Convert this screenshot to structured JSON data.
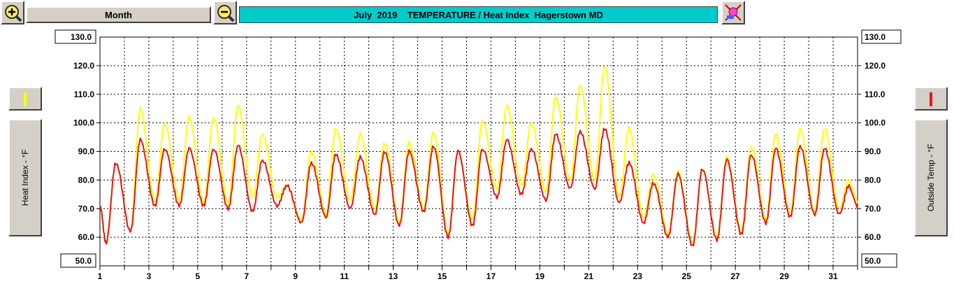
{
  "toolbar": {
    "zoom_in_icon": "magnifier-plus-icon",
    "zoom_out_icon": "magnifier-minus-icon",
    "range_label": "Month",
    "title": "July  2019    TEMPERATURE / Heat Index  Hagerstown MD",
    "settings_icon": "color-settings-icon"
  },
  "left_axis": {
    "label": "Heat Index - °F",
    "max_box": "130.0",
    "min_box": "50.0"
  },
  "right_axis": {
    "label": "Outside Temp - °F",
    "max_box": "130.0",
    "min_box": "50.0"
  },
  "chart_data": {
    "type": "line",
    "title": "July  2019    TEMPERATURE / Heat Index  Hagerstown MD",
    "xlabel": "",
    "ylabel_left": "Heat Index - °F",
    "ylabel_right": "Outside Temp - °F",
    "ylim": [
      50,
      130
    ],
    "xlim": [
      1,
      32
    ],
    "grid": true,
    "y_ticks": [
      "60.0",
      "70.0",
      "80.0",
      "90.0",
      "100.0",
      "110.0",
      "120.0"
    ],
    "x_ticks": [
      "1",
      "3",
      "5",
      "7",
      "9",
      "11",
      "13",
      "15",
      "17",
      "19",
      "21",
      "23",
      "25",
      "27",
      "29",
      "31"
    ],
    "colors": {
      "heat_index": "#ffff00",
      "outside_temp": "#ee1111",
      "title_bg": "#00cccc"
    },
    "daily": {
      "day": [
        1,
        2,
        3,
        4,
        5,
        6,
        7,
        8,
        9,
        10,
        11,
        12,
        13,
        14,
        15,
        16,
        17,
        18,
        19,
        20,
        21,
        22,
        23,
        24,
        25,
        26,
        27,
        28,
        29,
        30,
        31
      ],
      "temp_min": [
        58,
        62,
        71,
        71,
        71,
        70,
        69,
        71,
        65,
        67,
        70,
        68,
        64,
        69,
        60,
        64,
        74,
        75,
        73,
        77,
        77,
        72,
        65,
        60,
        57,
        59,
        61,
        65,
        67,
        68,
        68
      ],
      "temp_max": [
        86,
        94,
        91,
        91,
        91,
        92,
        87,
        78,
        86,
        89,
        88,
        90,
        90,
        92,
        90,
        91,
        94,
        91,
        96,
        97,
        98,
        86,
        79,
        82,
        84,
        87,
        89,
        91,
        92,
        91,
        78
      ],
      "heat_min": [
        58,
        62,
        72,
        73,
        72,
        72,
        74,
        74,
        66,
        68,
        73,
        70,
        65,
        70,
        61,
        66,
        77,
        78,
        76,
        80,
        80,
        74,
        67,
        61,
        58,
        60,
        62,
        66,
        68,
        69,
        70
      ],
      "heat_max": [
        86,
        105,
        100,
        102,
        102,
        106,
        96,
        78,
        90,
        98,
        96,
        93,
        93,
        97,
        90,
        101,
        106,
        100,
        109,
        113,
        120,
        98,
        82,
        83,
        84,
        88,
        92,
        96,
        98,
        98,
        80
      ]
    }
  }
}
